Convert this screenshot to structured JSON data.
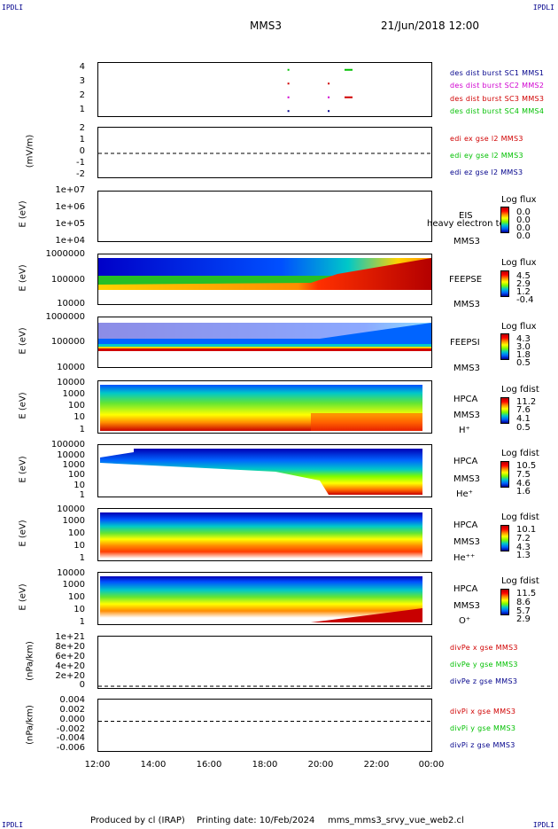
{
  "header": {
    "corner_left": "IPDLI",
    "corner_right": "IPDLI",
    "mission": "MMS3",
    "date": "21/Jun/2018 12:00"
  },
  "footer": {
    "produced_by": "Produced by cl (IRAP)",
    "printing_date": "Printing date: 10/Feb/2024",
    "filename": "mms_mms3_srvy_vue_web2.cl",
    "corner_left": "IPDLI",
    "corner_right": "IPDLI"
  },
  "colors": {
    "c1": "#00008b",
    "c2": "#d000d0",
    "c3": "#d00000",
    "c4": "#00c000",
    "dark_red": "#b40000",
    "red": "#ff0000",
    "orange": "#ff8c00",
    "yellow": "#ffff00",
    "green": "#7cfc00",
    "cyan": "#00c8c8",
    "blue": "#0064ff",
    "navy": "#000096"
  },
  "chart_data": [
    {
      "type": "scatter",
      "id": "burst",
      "yticks": [
        "4",
        "3",
        "2",
        "1"
      ],
      "ylim": [
        0.5,
        4.5
      ],
      "legend": [
        "des dist burst SC1 MMS1",
        "des dist burst SC2 MMS2",
        "des dist burst SC3 MMS3",
        "des dist burst SC4 MMS4"
      ],
      "series": [
        {
          "name": "des dist burst SC4 MMS4",
          "x": [
            18.85,
            21.0
          ],
          "values": [
            4,
            4
          ]
        },
        {
          "name": "des dist burst SC3 MMS3",
          "x": [
            18.85,
            20.3,
            21.0
          ],
          "values": [
            3,
            3,
            2
          ]
        },
        {
          "name": "des dist burst SC2 MMS2",
          "x": [
            18.85,
            20.3
          ],
          "values": [
            2,
            2
          ]
        },
        {
          "name": "des dist burst SC1 MMS1",
          "x": [
            18.85,
            20.3
          ],
          "values": [
            1,
            1
          ]
        }
      ]
    },
    {
      "type": "line",
      "id": "edi",
      "ylabel": "(mV/m)",
      "yticks": [
        "2",
        "1",
        "0",
        "-1",
        "-2"
      ],
      "ylim": [
        -2,
        2
      ],
      "legend": [
        "edi ex gse l2 MMS3",
        "edi ey gse l2 MMS3",
        "edi ez gse l2 MMS3"
      ]
    },
    {
      "type": "heatmap",
      "id": "eis",
      "ylabel": "E (eV)",
      "yticks": [
        "1e+07",
        "1e+06",
        "1e+05",
        "1e+04"
      ],
      "labels": [
        "EIS",
        "MMS3"
      ],
      "overlay": "heavy electron to",
      "cbar_title": "Log flux",
      "cbar_values": [
        "0.0",
        "0.0",
        "0.0",
        "0.0"
      ]
    },
    {
      "type": "heatmap",
      "id": "feepse",
      "ylabel": "E (eV)",
      "yticks": [
        "1000000",
        "100000",
        "10000"
      ],
      "labels": [
        "FEEPSE",
        "MMS3"
      ],
      "cbar_title": "Log flux",
      "cbar_values": [
        "4.5",
        "2.9",
        "1.2",
        "-0.4"
      ]
    },
    {
      "type": "heatmap",
      "id": "feepsi",
      "ylabel": "E (eV)",
      "yticks": [
        "1000000",
        "100000",
        "10000"
      ],
      "labels": [
        "FEEPSI",
        "MMS3"
      ],
      "cbar_title": "Log flux",
      "cbar_values": [
        "4.3",
        "3.0",
        "1.8",
        "0.5"
      ]
    },
    {
      "type": "heatmap",
      "id": "hpca_h",
      "ylabel": "E (eV)",
      "yticks": [
        "10000",
        "1000",
        "100",
        "10",
        "1"
      ],
      "labels": [
        "HPCA",
        "MMS3",
        "H⁺"
      ],
      "cbar_title": "Log fdist",
      "cbar_values": [
        "11.2",
        "7.6",
        "4.1",
        "0.5"
      ]
    },
    {
      "type": "heatmap",
      "id": "hpca_he",
      "ylabel": "E (eV)",
      "yticks": [
        "100000",
        "10000",
        "1000",
        "100",
        "10",
        "1"
      ],
      "labels": [
        "HPCA",
        "MMS3",
        "He⁺"
      ],
      "cbar_title": "Log fdist",
      "cbar_values": [
        "10.5",
        "7.5",
        "4.6",
        "1.6"
      ]
    },
    {
      "type": "heatmap",
      "id": "hpca_hepp",
      "ylabel": "E (eV)",
      "yticks": [
        "10000",
        "1000",
        "100",
        "10",
        "1"
      ],
      "labels": [
        "HPCA",
        "MMS3",
        "He⁺⁺"
      ],
      "cbar_title": "Log fdist",
      "cbar_values": [
        "10.1",
        "7.2",
        "4.3",
        "1.3"
      ]
    },
    {
      "type": "heatmap",
      "id": "hpca_o",
      "ylabel": "E (eV)",
      "yticks": [
        "10000",
        "1000",
        "100",
        "10",
        "1"
      ],
      "labels": [
        "HPCA",
        "MMS3",
        "O⁺"
      ],
      "cbar_title": "Log fdist",
      "cbar_values": [
        "11.5",
        "8.6",
        "5.7",
        "2.9"
      ]
    },
    {
      "type": "line",
      "id": "divpe",
      "ylabel": "(nPa/km)",
      "yticks": [
        "1e+21",
        "8e+20",
        "6e+20",
        "4e+20",
        "2e+20",
        "0"
      ],
      "ylim": [
        0,
        1e+21
      ],
      "legend": [
        "divPe x gse MMS3",
        "divPe y gse MMS3",
        "divPe z gse MMS3"
      ]
    },
    {
      "type": "line",
      "id": "divpi",
      "ylabel": "(nPa/km)",
      "yticks": [
        "0.004",
        "0.002",
        "0.000",
        "-0.002",
        "-0.004",
        "-0.006"
      ],
      "ylim": [
        -0.0065,
        0.0045
      ],
      "legend": [
        "divPi x gse MMS3",
        "divPi y gse MMS3",
        "divPi z gse MMS3"
      ]
    }
  ],
  "xaxis": {
    "ticks": [
      "12:00",
      "14:00",
      "16:00",
      "18:00",
      "20:00",
      "22:00",
      "00:00"
    ],
    "xlim": [
      12,
      24
    ]
  }
}
